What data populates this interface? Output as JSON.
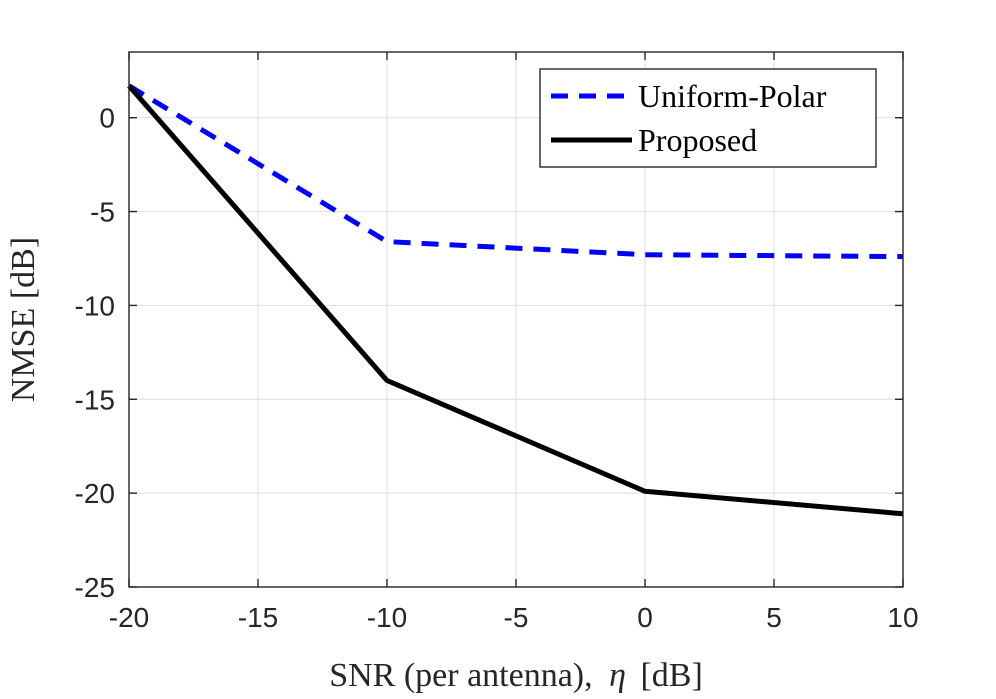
{
  "chart_data": {
    "type": "line",
    "title": "",
    "xlabel_main": "SNR (per antenna),",
    "xlabel_symbol": "η",
    "xlabel_unit": "[dB]",
    "ylabel": "NMSE [dB]",
    "xlim": [
      -20,
      10
    ],
    "ylim": [
      -25,
      3.5
    ],
    "xticks": [
      -20,
      -15,
      -10,
      -5,
      0,
      5,
      10
    ],
    "yticks": [
      -25,
      -20,
      -15,
      -10,
      -5,
      0
    ],
    "grid": true,
    "legend_position": "top-right",
    "x": [
      -20,
      -10,
      0,
      10
    ],
    "series": [
      {
        "name": "Uniform-Polar",
        "values": [
          1.7,
          -6.6,
          -7.3,
          -7.4
        ],
        "color": "#0000ff",
        "style": "dashed"
      },
      {
        "name": "Proposed",
        "values": [
          1.7,
          -14.0,
          -19.9,
          -21.1
        ],
        "color": "#000000",
        "style": "solid"
      }
    ]
  }
}
